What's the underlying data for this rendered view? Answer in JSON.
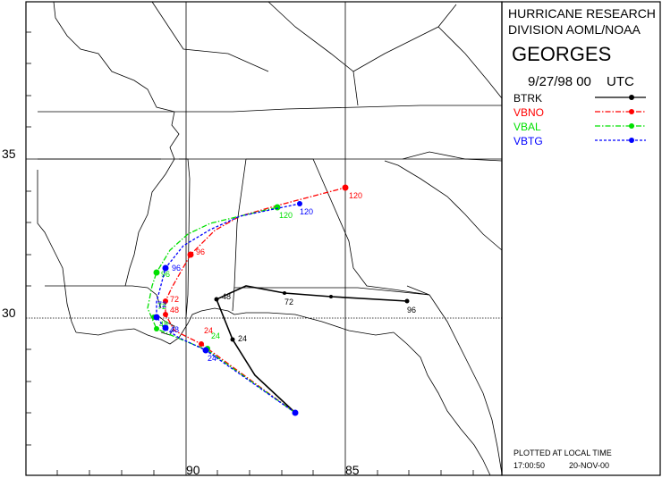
{
  "header": {
    "org_line1": "HURRICANE RESEARCH",
    "org_line2": "DIVISION AOML/NOAA",
    "storm_name": "GEORGES",
    "date_time": "9/27/98 00",
    "time_zone": "UTC"
  },
  "axes": {
    "lat_labels": [
      "35",
      "30"
    ],
    "lon_labels": [
      "90",
      "85"
    ]
  },
  "legend": {
    "items": [
      {
        "label": "BTRK",
        "color": "#000000",
        "style": "solid"
      },
      {
        "label": "VBNO",
        "color": "#ff0000",
        "style": "dashdot"
      },
      {
        "label": "VBAL",
        "color": "#00e000",
        "style": "dashdot"
      },
      {
        "label": "VBTG",
        "color": "#0000ff",
        "style": "dashed"
      }
    ]
  },
  "footer": {
    "plotted_note": "PLOTTED AT LOCAL TIME",
    "plot_time": "17:00:50",
    "plot_date": "20-NOV-00"
  },
  "tracks": {
    "BTRK": {
      "color": "#000000",
      "labels": [
        "24",
        "48",
        "72",
        "96"
      ]
    },
    "VBNO": {
      "color": "#ff0000",
      "labels": [
        "24",
        "48",
        "72",
        "96",
        "120"
      ]
    },
    "VBAL": {
      "color": "#00e000",
      "labels": [
        "24",
        "48",
        "72",
        "96",
        "120"
      ]
    },
    "VBTG": {
      "color": "#0000ff",
      "labels": [
        "24",
        "48",
        "72",
        "96",
        "120"
      ]
    }
  }
}
